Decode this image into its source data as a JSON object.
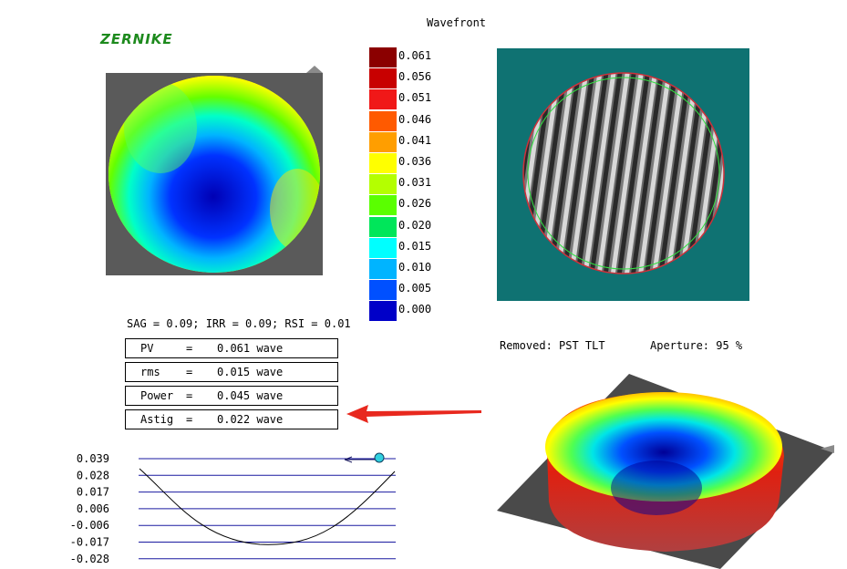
{
  "window": {
    "title": "Wavefront"
  },
  "logo": {
    "text": "ZERNIKE"
  },
  "scale": {
    "labels": [
      "0.061",
      "0.056",
      "0.051",
      "0.046",
      "0.041",
      "0.036",
      "0.031",
      "0.026",
      "0.020",
      "0.015",
      "0.010",
      "0.005",
      "0.000"
    ],
    "colors": [
      "#8b0000",
      "#c80000",
      "#f01818",
      "#ff5a00",
      "#ff9e00",
      "#ffff00",
      "#b4ff00",
      "#5aff00",
      "#00e65a",
      "#00ffff",
      "#00b4ff",
      "#0050ff",
      "#0000c8"
    ]
  },
  "metrics": {
    "summary": "SAG = 0.09; IRR = 0.09; RSI = 0.01",
    "rows": [
      {
        "name": "PV",
        "eq": "=",
        "value": "0.061 wave"
      },
      {
        "name": "rms",
        "eq": "=",
        "value": "0.015 wave"
      },
      {
        "name": "Power",
        "eq": "=",
        "value": "0.045 wave"
      },
      {
        "name": "Astig",
        "eq": "=",
        "value": "0.022 wave"
      }
    ]
  },
  "surface": {
    "removed": "Removed: PST TLT",
    "aperture": "Aperture: 95 %"
  },
  "profile": {
    "ticks": [
      "0.039",
      "0.028",
      "0.017",
      "0.006",
      "-0.006",
      "-0.017",
      "-0.028"
    ]
  },
  "colors": {
    "fringe_bg": "#0f7272",
    "panel_bg": "#5a5a5a",
    "arrow": "#e8281e",
    "profile_grid": "#1a1aa0"
  }
}
